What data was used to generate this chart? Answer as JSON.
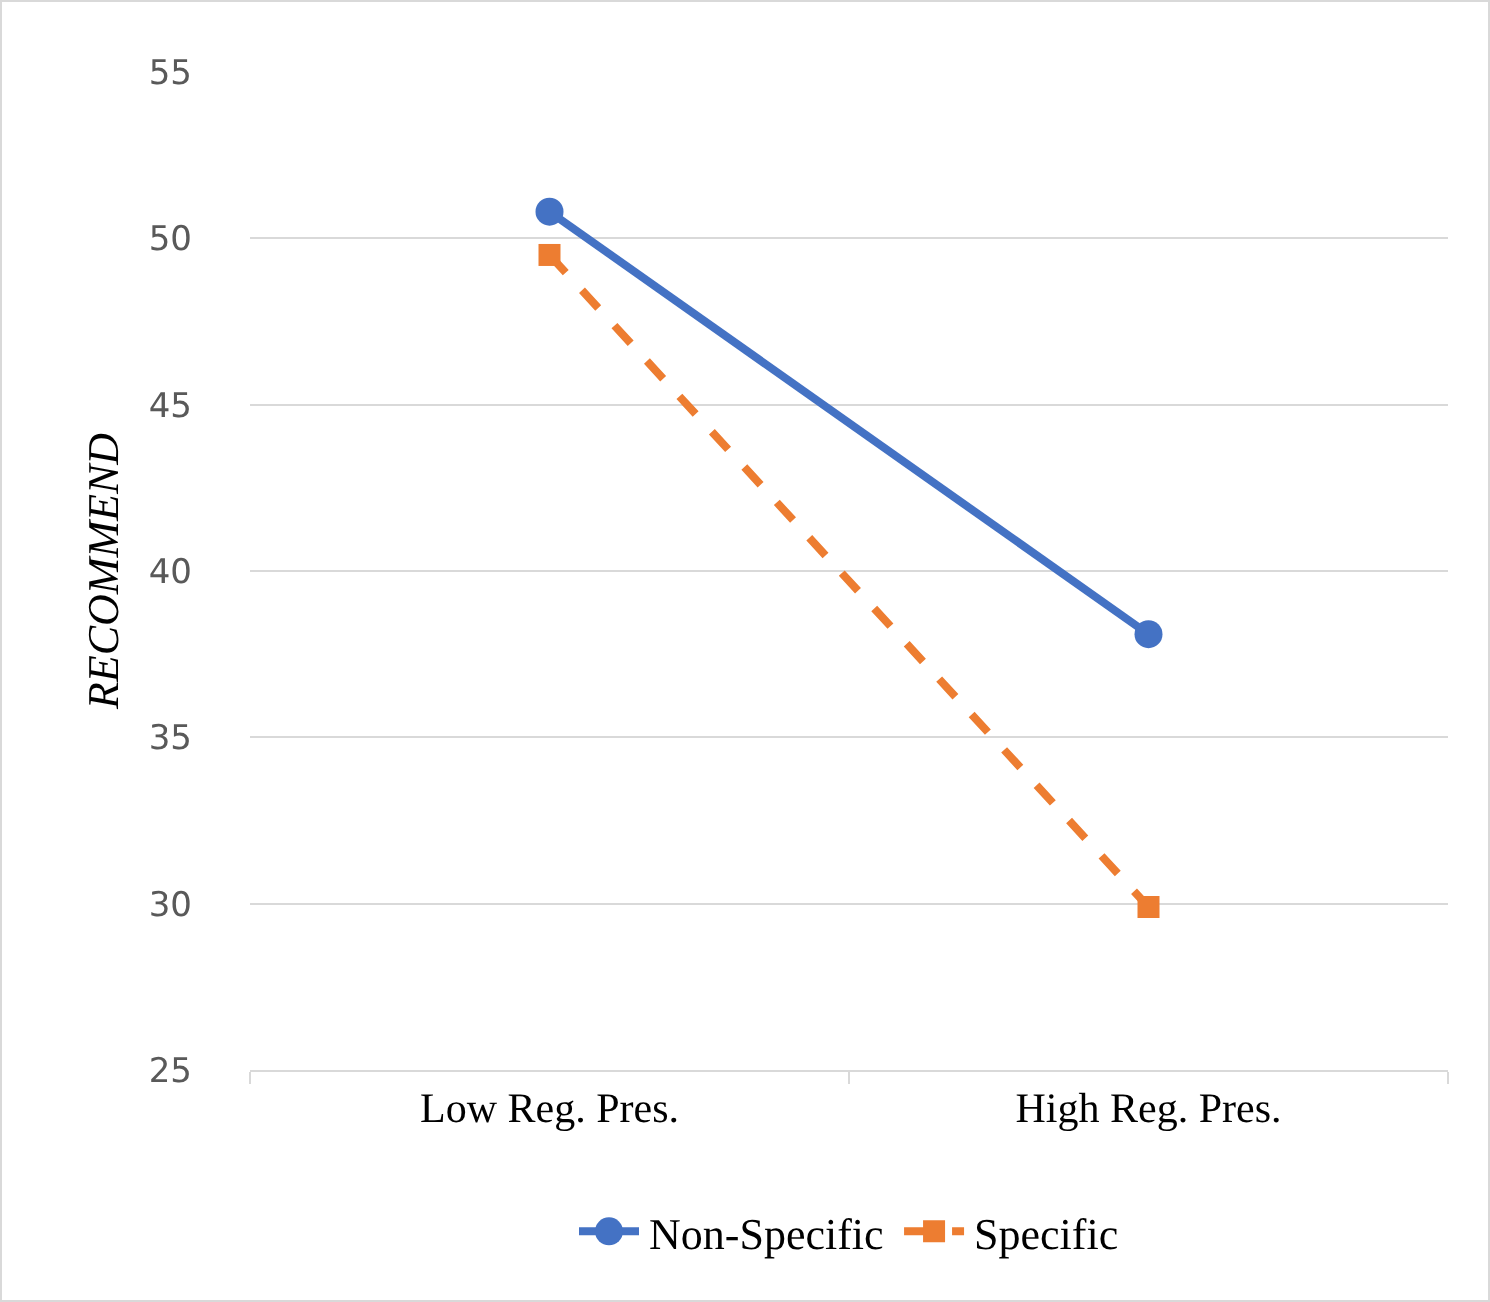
{
  "chart_data": {
    "type": "line",
    "ylabel": "RECOMMEND",
    "categories": [
      "Low Reg. Pres.",
      "High Reg. Pres."
    ],
    "series": [
      {
        "name": "Non-Specific",
        "color": "#4472c4",
        "values": [
          50.8,
          38.1
        ],
        "marker": "circle",
        "line_style": "solid"
      },
      {
        "name": "Specific",
        "color": "#ed7d31",
        "values": [
          49.5,
          29.9
        ],
        "marker": "square",
        "line_style": "dashed"
      }
    ],
    "ylim": [
      25,
      55
    ],
    "yticks": [
      25,
      30,
      35,
      40,
      45,
      50,
      55
    ],
    "grid": "y",
    "legend": "bottom"
  }
}
